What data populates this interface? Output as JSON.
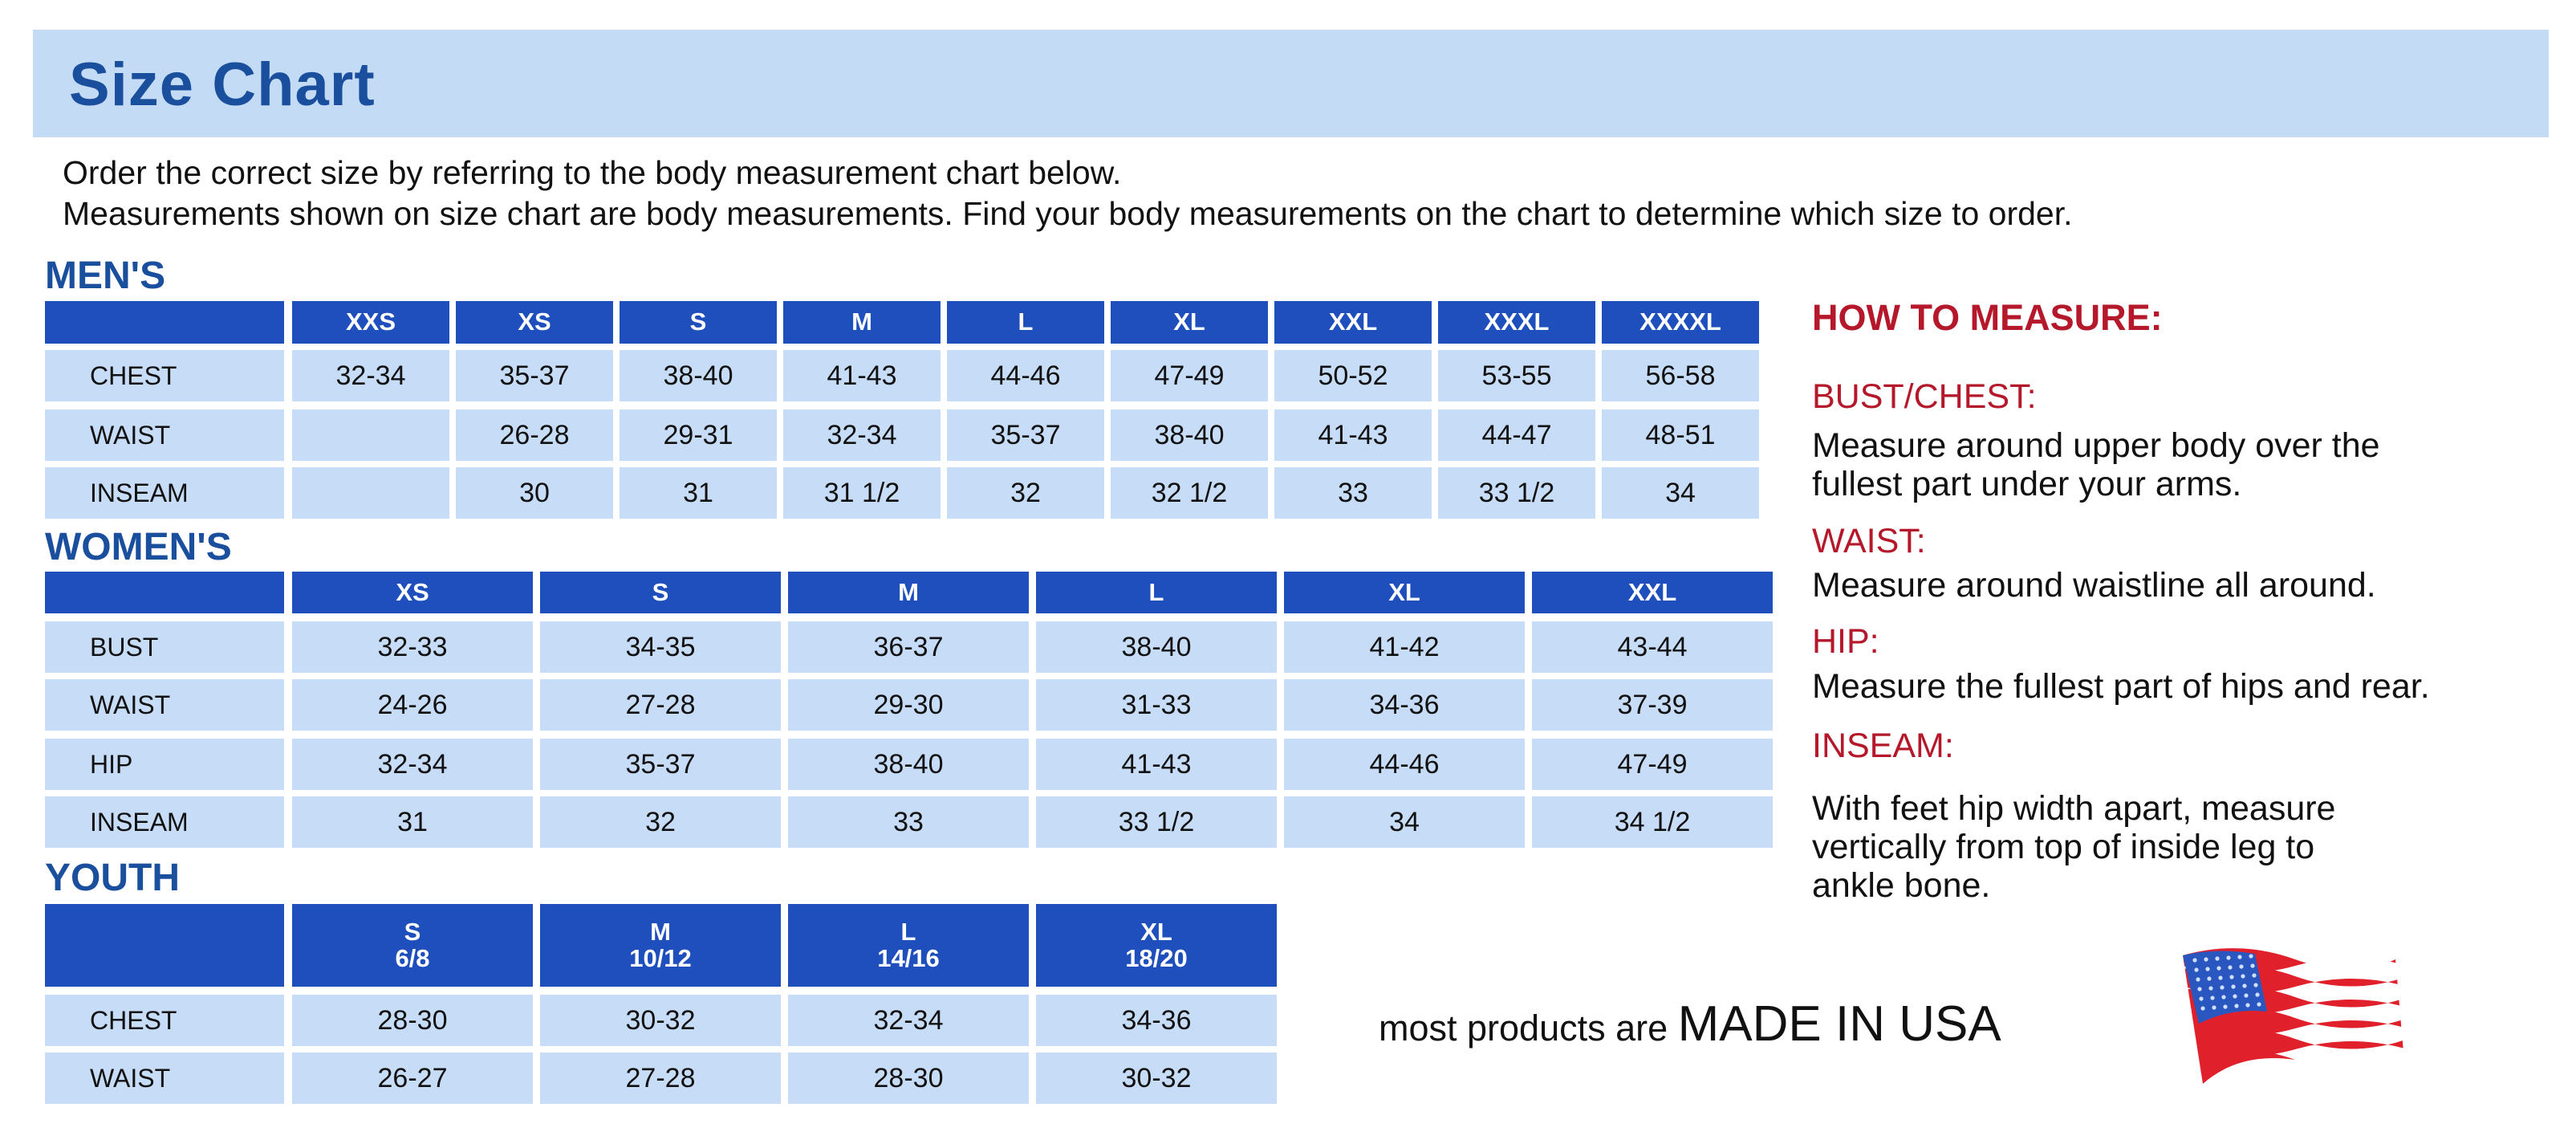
{
  "header": {
    "title": "Size Chart"
  },
  "intro": [
    "Order the correct size by referring to the body measurement chart below.",
    "Measurements shown on size chart are body measurements.  Find your body measurements on the chart to determine which size to order."
  ],
  "mens": {
    "label": "MEN'S",
    "sizes": [
      "XXS",
      "XS",
      "S",
      "M",
      "L",
      "XL",
      "XXL",
      "XXXL",
      "XXXXL"
    ],
    "rows": [
      {
        "name": "CHEST",
        "values": [
          "32-34",
          "35-37",
          "38-40",
          "41-43",
          "44-46",
          "47-49",
          "50-52",
          "53-55",
          "56-58"
        ]
      },
      {
        "name": "WAIST",
        "values": [
          "",
          "26-28",
          "29-31",
          "32-34",
          "35-37",
          "38-40",
          "41-43",
          "44-47",
          "48-51"
        ]
      },
      {
        "name": "INSEAM",
        "values": [
          "",
          "30",
          "31",
          "31 1/2",
          "32",
          "32 1/2",
          "33",
          "33 1/2",
          "34"
        ]
      }
    ]
  },
  "womens": {
    "label": "WOMEN'S",
    "sizes": [
      "XS",
      "S",
      "M",
      "L",
      "XL",
      "XXL"
    ],
    "rows": [
      {
        "name": "BUST",
        "values": [
          "32-33",
          "34-35",
          "36-37",
          "38-40",
          "41-42",
          "43-44"
        ]
      },
      {
        "name": "WAIST",
        "values": [
          "24-26",
          "27-28",
          "29-30",
          "31-33",
          "34-36",
          "37-39"
        ]
      },
      {
        "name": "HIP",
        "values": [
          "32-34",
          "35-37",
          "38-40",
          "41-43",
          "44-46",
          "47-49"
        ]
      },
      {
        "name": "INSEAM",
        "values": [
          "31",
          "32",
          "33",
          "33 1/2",
          "34",
          "34 1/2"
        ]
      }
    ]
  },
  "youth": {
    "label": "YOUTH",
    "sizes": [
      "S",
      "M",
      "L",
      "XL"
    ],
    "ages": [
      "6/8",
      "10/12",
      "14/16",
      "18/20"
    ],
    "rows": [
      {
        "name": "CHEST",
        "values": [
          "28-30",
          "30-32",
          "32-34",
          "34-36"
        ]
      },
      {
        "name": "WAIST",
        "values": [
          "26-27",
          "27-28",
          "28-30",
          "30-32"
        ]
      }
    ]
  },
  "how_to_measure": {
    "title": "HOW TO MEASURE:",
    "items": [
      {
        "label": "BUST/CHEST:",
        "lines": [
          "Measure around upper body over the",
          "fullest part under your arms."
        ]
      },
      {
        "label": "WAIST:",
        "lines": [
          "Measure around waistline all around."
        ]
      },
      {
        "label": "HIP:",
        "lines": [
          "Measure the fullest part of hips and rear."
        ]
      },
      {
        "label": "INSEAM:",
        "lines": [
          "With feet hip width apart, measure",
          "vertically from top of inside leg to",
          "ankle bone."
        ]
      }
    ]
  },
  "footer": {
    "prefix": "most products are ",
    "emphasis": "MADE IN USA",
    "flag_icon": "us-flag-icon"
  },
  "colors": {
    "header_blue": "#1f4fbd",
    "cell_blue": "#c6dcf7",
    "banner": "#c4dbf6",
    "title": "#1a4f9e",
    "accent_red": "#b4182a"
  }
}
